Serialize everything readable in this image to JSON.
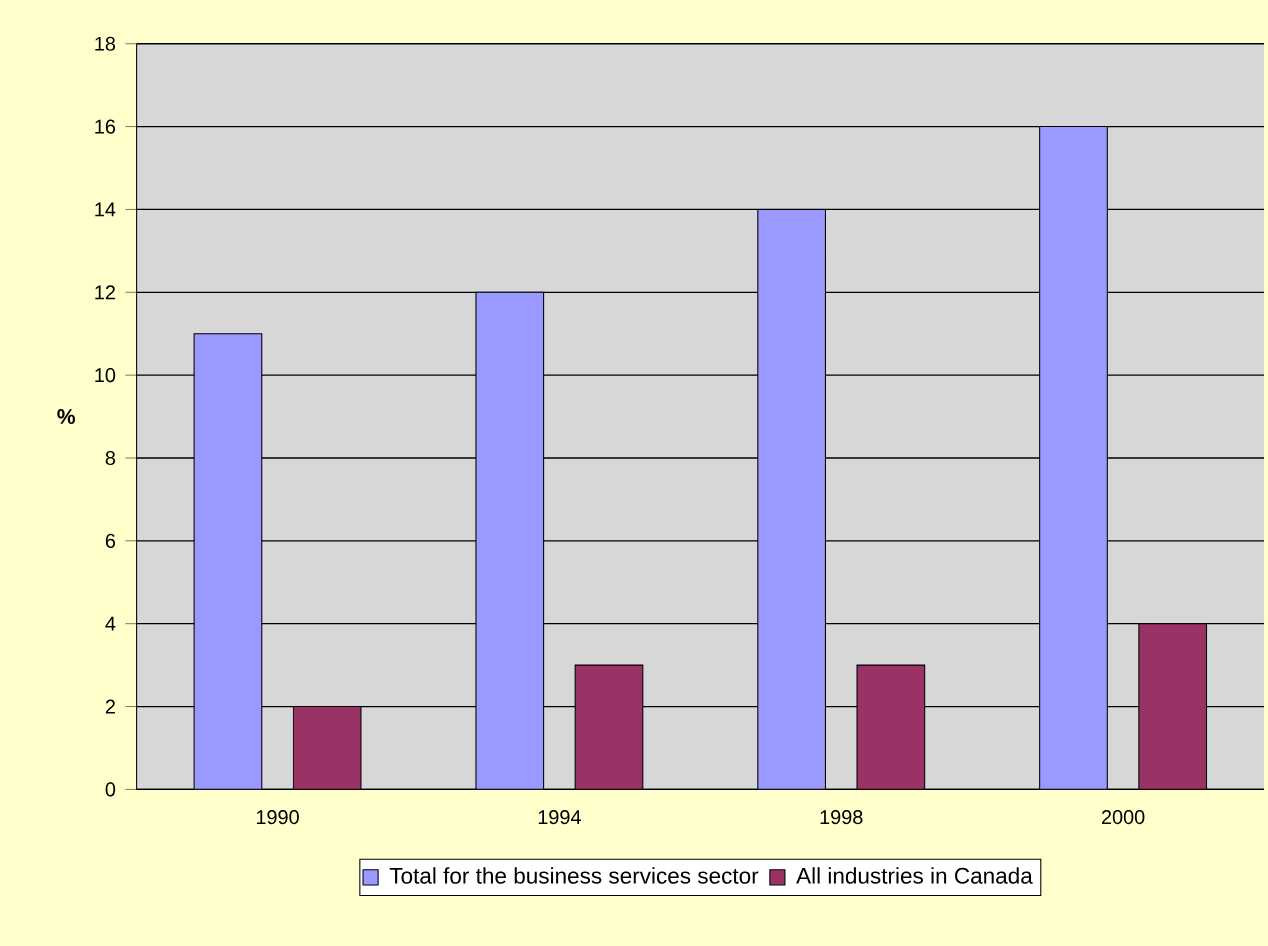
{
  "chart_data": {
    "type": "bar",
    "ylabel": "%",
    "categories": [
      "1990",
      "1994",
      "1998",
      "2000"
    ],
    "series": [
      {
        "name": "Total for the business services sector",
        "color": "#9999ff",
        "values": [
          11,
          12,
          14,
          16
        ]
      },
      {
        "name": "All industries in Canada",
        "color": "#993366",
        "values": [
          2,
          3,
          3,
          4
        ]
      }
    ],
    "ylim": [
      0,
      18
    ],
    "yticks": [
      0,
      2,
      4,
      6,
      8,
      10,
      12,
      14,
      16,
      18
    ],
    "grid": "y",
    "legend": "bottom"
  }
}
